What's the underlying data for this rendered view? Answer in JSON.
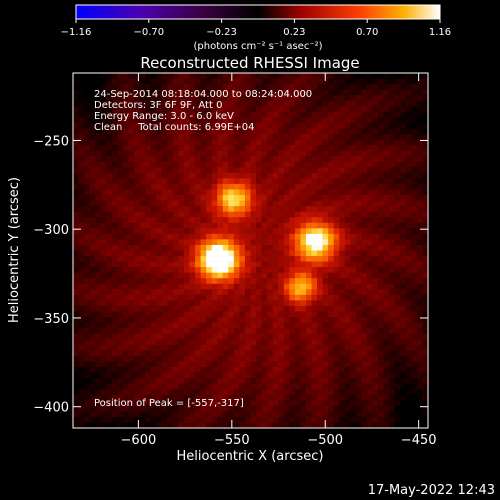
{
  "chart_data": {
    "type": "heatmap",
    "title": "Reconstructed RHESSI Image",
    "xlabel": "Heliocentric X (arcsec)",
    "ylabel": "Heliocentric Y (arcsec)",
    "xlim": [
      -635,
      -445
    ],
    "ylim": [
      -412,
      -212
    ],
    "xticks": [
      -600,
      -550,
      -500,
      -450
    ],
    "yticks": [
      -250,
      -300,
      -350,
      -400
    ],
    "xtick_labels": [
      "−600",
      "−550",
      "−500",
      "−450"
    ],
    "ytick_labels": [
      "−250",
      "−300",
      "−350",
      "−400"
    ],
    "colorbar": {
      "range": [
        -1.16,
        1.16
      ],
      "tick_labels": [
        "−1.16",
        "−0.70",
        "−0.23",
        "0.23",
        "0.70",
        "1.16"
      ],
      "unit_label": "(photons cm⁻² s⁻¹ asec⁻²)"
    },
    "annotations": [
      "24-Sep-2014 08:18:04.000 to 08:24:04.000",
      "Detectors: 3F 6F 9F, Att 0",
      "Energy Range: 3.0 - 6.0 keV",
      "Clean     Total counts: 6.99E+04"
    ],
    "peak_label": "Position of Peak = [-557,-317]",
    "sources": [
      {
        "x": -557,
        "y": -317,
        "peak": 1.16,
        "sigma": 8
      },
      {
        "x": -549,
        "y": -283,
        "peak": 0.78,
        "sigma": 7
      },
      {
        "x": -505,
        "y": -307,
        "peak": 0.95,
        "sigma": 8
      },
      {
        "x": -513,
        "y": -333,
        "peak": 0.7,
        "sigma": 6
      }
    ],
    "background_level": 0.35,
    "grid": false
  },
  "timestamp": "17-May-2022 12:43"
}
